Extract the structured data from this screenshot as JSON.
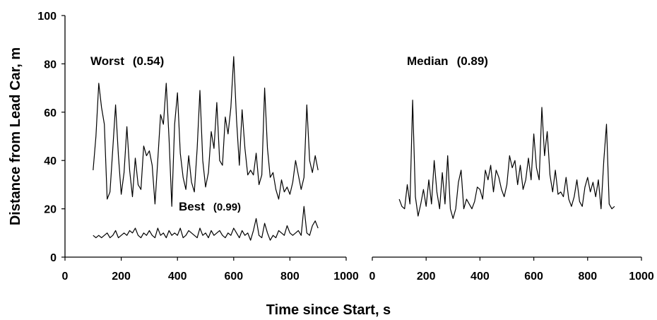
{
  "chart_data": {
    "type": "line",
    "ylabel": "Distance from Lead Car, m",
    "xlabel": "Time since Start, s",
    "ylim": [
      0,
      100
    ],
    "yticks": [
      "0",
      "20",
      "40",
      "60",
      "80",
      "100"
    ],
    "xlim": [
      0,
      1000
    ],
    "xticks": [
      "0",
      "200",
      "400",
      "600",
      "800",
      "1000"
    ],
    "grid": false,
    "panels": [
      {
        "panel": "left",
        "series": [
          {
            "name": "Worst",
            "label_value": "(0.54)",
            "x": [
              100,
              110,
              120,
              130,
              140,
              150,
              160,
              170,
              180,
              190,
              200,
              210,
              220,
              230,
              240,
              250,
              260,
              270,
              280,
              290,
              300,
              310,
              320,
              330,
              340,
              350,
              360,
              370,
              380,
              390,
              400,
              410,
              420,
              430,
              440,
              450,
              460,
              470,
              480,
              490,
              500,
              510,
              520,
              530,
              540,
              550,
              560,
              570,
              580,
              590,
              600,
              610,
              620,
              630,
              640,
              650,
              660,
              670,
              680,
              690,
              700,
              710,
              720,
              730,
              740,
              750,
              760,
              770,
              780,
              790,
              800,
              810,
              820,
              830,
              840,
              850,
              860,
              870,
              880,
              890,
              900
            ],
            "values": [
              36,
              50,
              72,
              62,
              55,
              24,
              27,
              45,
              63,
              42,
              26,
              35,
              54,
              36,
              25,
              41,
              30,
              28,
              46,
              42,
              44,
              38,
              22,
              40,
              59,
              55,
              72,
              49,
              21,
              55,
              68,
              43,
              33,
              28,
              42,
              31,
              27,
              45,
              69,
              40,
              29,
              35,
              52,
              45,
              64,
              40,
              38,
              58,
              51,
              62,
              83,
              57,
              38,
              61,
              45,
              34,
              36,
              34,
              43,
              30,
              34,
              70,
              45,
              33,
              35,
              28,
              24,
              32,
              27,
              29,
              26,
              31,
              40,
              34,
              28,
              33,
              63,
              40,
              35,
              42,
              36
            ]
          },
          {
            "name": "Best",
            "label_value": "(0.99)",
            "x": [
              100,
              110,
              120,
              130,
              140,
              150,
              160,
              170,
              180,
              190,
              200,
              210,
              220,
              230,
              240,
              250,
              260,
              270,
              280,
              290,
              300,
              310,
              320,
              330,
              340,
              350,
              360,
              370,
              380,
              390,
              400,
              410,
              420,
              430,
              440,
              450,
              460,
              470,
              480,
              490,
              500,
              510,
              520,
              530,
              540,
              550,
              560,
              570,
              580,
              590,
              600,
              610,
              620,
              630,
              640,
              650,
              660,
              670,
              680,
              690,
              700,
              710,
              720,
              730,
              740,
              750,
              760,
              770,
              780,
              790,
              800,
              810,
              820,
              830,
              840,
              850,
              860,
              870,
              880,
              890,
              900
            ],
            "values": [
              9,
              8,
              9,
              8,
              9,
              10,
              8,
              9,
              11,
              8,
              9,
              10,
              9,
              11,
              10,
              12,
              9,
              8,
              10,
              9,
              11,
              9,
              8,
              12,
              9,
              10,
              8,
              11,
              9,
              10,
              9,
              12,
              8,
              9,
              11,
              10,
              9,
              8,
              12,
              9,
              10,
              8,
              11,
              9,
              10,
              11,
              9,
              8,
              10,
              9,
              12,
              10,
              8,
              11,
              9,
              10,
              7,
              11,
              16,
              9,
              8,
              14,
              10,
              7,
              9,
              8,
              11,
              10,
              9,
              13,
              10,
              9,
              10,
              11,
              9,
              21,
              10,
              9,
              13,
              15,
              12
            ]
          }
        ]
      },
      {
        "panel": "right",
        "series": [
          {
            "name": "Median",
            "label_value": "(0.89)",
            "x": [
              100,
              110,
              120,
              130,
              140,
              150,
              160,
              170,
              180,
              190,
              200,
              210,
              220,
              230,
              240,
              250,
              260,
              270,
              280,
              290,
              300,
              310,
              320,
              330,
              340,
              350,
              360,
              370,
              380,
              390,
              400,
              410,
              420,
              430,
              440,
              450,
              460,
              470,
              480,
              490,
              500,
              510,
              520,
              530,
              540,
              550,
              560,
              570,
              580,
              590,
              600,
              610,
              620,
              630,
              640,
              650,
              660,
              670,
              680,
              690,
              700,
              710,
              720,
              730,
              740,
              750,
              760,
              770,
              780,
              790,
              800,
              810,
              820,
              830,
              840,
              850,
              860,
              870,
              880,
              890,
              900
            ],
            "values": [
              24,
              21,
              20,
              30,
              22,
              65,
              25,
              17,
              22,
              28,
              21,
              32,
              22,
              40,
              27,
              20,
              35,
              22,
              42,
              20,
              16,
              20,
              31,
              36,
              20,
              24,
              22,
              20,
              23,
              29,
              28,
              24,
              36,
              32,
              38,
              27,
              36,
              33,
              28,
              25,
              30,
              42,
              37,
              40,
              30,
              38,
              28,
              32,
              41,
              32,
              51,
              37,
              32,
              62,
              42,
              52,
              34,
              27,
              36,
              26,
              27,
              25,
              33,
              24,
              21,
              25,
              32,
              23,
              21,
              29,
              33,
              27,
              31,
              25,
              32,
              20,
              40,
              55,
              22,
              20,
              21
            ]
          }
        ]
      }
    ]
  }
}
